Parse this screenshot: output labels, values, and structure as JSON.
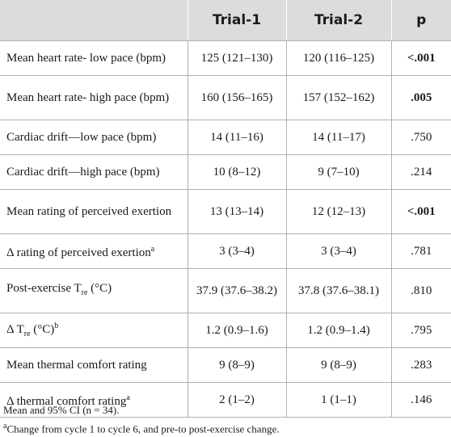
{
  "table": {
    "headers": [
      "",
      "Trial-1",
      "Trial-2",
      "p"
    ],
    "rows": [
      {
        "label": "Mean heart rate- low pace (bpm)",
        "trial1": "125 (121–130)",
        "trial2": "120 (116–125)",
        "p": "<.001",
        "p_bold": true
      },
      {
        "label": "Mean heart rate- high pace (bpm)",
        "trial1": "160 (156–165)",
        "trial2": "157 (152–162)",
        "p": ".005",
        "p_bold": true
      },
      {
        "label": "Cardiac drift—low pace (bpm)",
        "trial1": "14 (11–16)",
        "trial2": "14 (11–17)",
        "p": ".750",
        "p_bold": false
      },
      {
        "label": "Cardiac drift—high pace (bpm)",
        "trial1": "10 (8–12)",
        "trial2": "9 (7–10)",
        "p": ".214",
        "p_bold": false
      },
      {
        "label": "Mean rating of perceived exertion",
        "trial1": "13 (13–14)",
        "trial2": "12 (12–13)",
        "p": "<.001",
        "p_bold": true
      },
      {
        "label_pre": "Δ rating of perceived exertion",
        "label_sup": "a",
        "trial1": "3 (3–4)",
        "trial2": "3 (3–4)",
        "p": ".781",
        "p_bold": false
      },
      {
        "label_pre": "Post-exercise T",
        "label_sub": "re",
        "label_post": " (°C)",
        "trial1": "37.9 (37.6–38.2)",
        "trial2": "37.8 (37.6–38.1)",
        "p": ".810",
        "p_bold": false
      },
      {
        "label_pre": "Δ T",
        "label_sub": "re",
        "label_post": " (°C)",
        "label_sup": "b",
        "trial1": "1.2 (0.9–1.6)",
        "trial2": "1.2 (0.9–1.4)",
        "p": ".795",
        "p_bold": false
      },
      {
        "label": "Mean thermal comfort rating",
        "trial1": "9 (8–9)",
        "trial2": "9 (8–9)",
        "p": ".283",
        "p_bold": false
      },
      {
        "label_pre": "Δ thermal comfort rating",
        "label_sup": "a",
        "trial1": "2 (1–2)",
        "trial2": "1 (1–1)",
        "p": ".146",
        "p_bold": false
      }
    ]
  },
  "notes": {
    "line1": "Mean and 95% CI (n = 34).",
    "line2_sup": "a",
    "line2": "Change from cycle 1 to cycle 6, and pre-to post-exercise change."
  }
}
